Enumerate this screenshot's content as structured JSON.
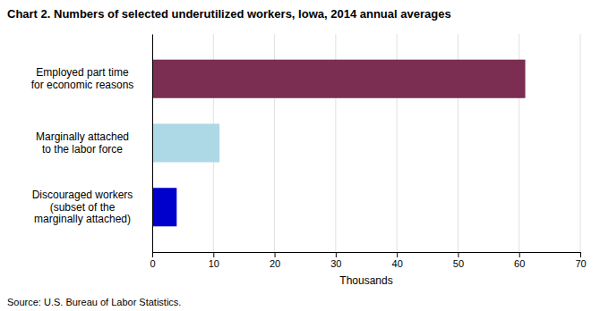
{
  "chart_data": {
    "type": "bar",
    "orientation": "horizontal",
    "title": "Chart 2. Numbers of selected underutilized workers, Iowa, 2014 annual averages",
    "categories": [
      "Discouraged workers\n(subset of the\nmarginally attached)",
      "Marginally attached\nto the labor force",
      "Employed part time\nfor economic reasons"
    ],
    "values": [
      4,
      11,
      61
    ],
    "colors": [
      "#0000cc",
      "#add8e6",
      "#7b2d52"
    ],
    "xlim": [
      0,
      70
    ],
    "xticks": [
      0,
      10,
      20,
      30,
      40,
      50,
      60,
      70
    ],
    "xlabel": "Thousands",
    "source": "Source: U.S. Bureau of Labor Statistics.",
    "grid": true
  }
}
